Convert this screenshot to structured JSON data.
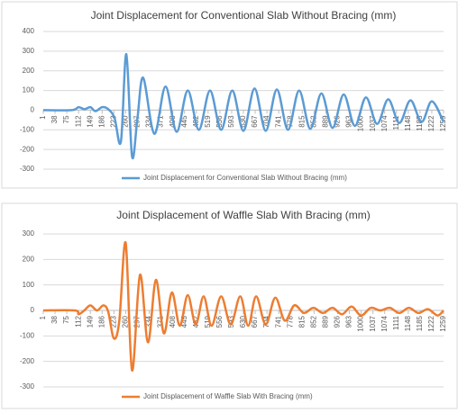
{
  "chart_data": [
    {
      "type": "line",
      "title": "Joint Displacement for Conventional Slab Without Bracing (mm)",
      "x": [
        1,
        90,
        112,
        130,
        149,
        165,
        186,
        205,
        225,
        245,
        262,
        280,
        297,
        315,
        350,
        385,
        420,
        455,
        490,
        525,
        560,
        595,
        630,
        665,
        700,
        735,
        770,
        805,
        840,
        875,
        910,
        945,
        980,
        1015,
        1050,
        1085,
        1120,
        1155,
        1190,
        1222,
        1259
      ],
      "series": [
        {
          "name": "Joint Displacement for Conventional Slab Without Bracing (mm)",
          "color": "#5b9bd5",
          "values": [
            0,
            0,
            15,
            5,
            15,
            -5,
            15,
            5,
            -40,
            -160,
            285,
            -235,
            -40,
            165,
            -120,
            120,
            -110,
            100,
            -100,
            100,
            -100,
            100,
            -105,
            110,
            -105,
            105,
            -100,
            100,
            -95,
            85,
            -90,
            80,
            -80,
            65,
            -70,
            55,
            -65,
            50,
            -60,
            45,
            -60
          ]
        }
      ],
      "xlim": [
        1,
        1259
      ],
      "xticks": [
        1,
        38,
        75,
        112,
        149,
        186,
        223,
        260,
        297,
        334,
        371,
        408,
        445,
        482,
        519,
        556,
        593,
        630,
        667,
        704,
        741,
        778,
        815,
        852,
        889,
        926,
        963,
        1000,
        1037,
        1074,
        1111,
        1148,
        1185,
        1222,
        1259
      ],
      "ylim": [
        -300,
        400
      ],
      "yticks": [
        -300,
        -200,
        -100,
        0,
        100,
        200,
        300,
        400
      ],
      "grid": true,
      "legend": "bottom"
    },
    {
      "type": "line",
      "title": "Joint Displacement of Waffle Slab With Bracing (mm)",
      "x": [
        1,
        100,
        112,
        130,
        149,
        170,
        190,
        205,
        223,
        240,
        260,
        280,
        305,
        330,
        355,
        380,
        405,
        430,
        455,
        480,
        505,
        530,
        560,
        590,
        620,
        645,
        670,
        700,
        730,
        760,
        790,
        820,
        850,
        880,
        910,
        940,
        970,
        1000,
        1030,
        1060,
        1090,
        1120,
        1150,
        1180,
        1210,
        1240,
        1259
      ],
      "series": [
        {
          "name": "Joint Displacement of Waffle Slab With Bracing (mm)",
          "color": "#ed7d31",
          "values": [
            0,
            0,
            -15,
            0,
            20,
            0,
            20,
            -5,
            -110,
            -40,
            265,
            -235,
            140,
            -125,
            120,
            -90,
            70,
            -60,
            60,
            -55,
            55,
            -60,
            55,
            -55,
            55,
            -60,
            55,
            -55,
            50,
            -40,
            20,
            -10,
            10,
            -10,
            10,
            -15,
            15,
            -20,
            10,
            0,
            10,
            -10,
            10,
            -10,
            5,
            -20,
            0
          ]
        }
      ],
      "xlim": [
        1,
        1259
      ],
      "xticks": [
        1,
        38,
        75,
        112,
        149,
        186,
        223,
        260,
        297,
        334,
        371,
        408,
        445,
        482,
        519,
        556,
        593,
        630,
        667,
        704,
        741,
        778,
        815,
        852,
        889,
        926,
        963,
        1000,
        1037,
        1074,
        1111,
        1148,
        1185,
        1222,
        1259
      ],
      "ylim": [
        -300,
        300
      ],
      "yticks": [
        -300,
        -200,
        -100,
        0,
        100,
        200,
        300
      ],
      "grid": true,
      "legend": "bottom"
    }
  ]
}
